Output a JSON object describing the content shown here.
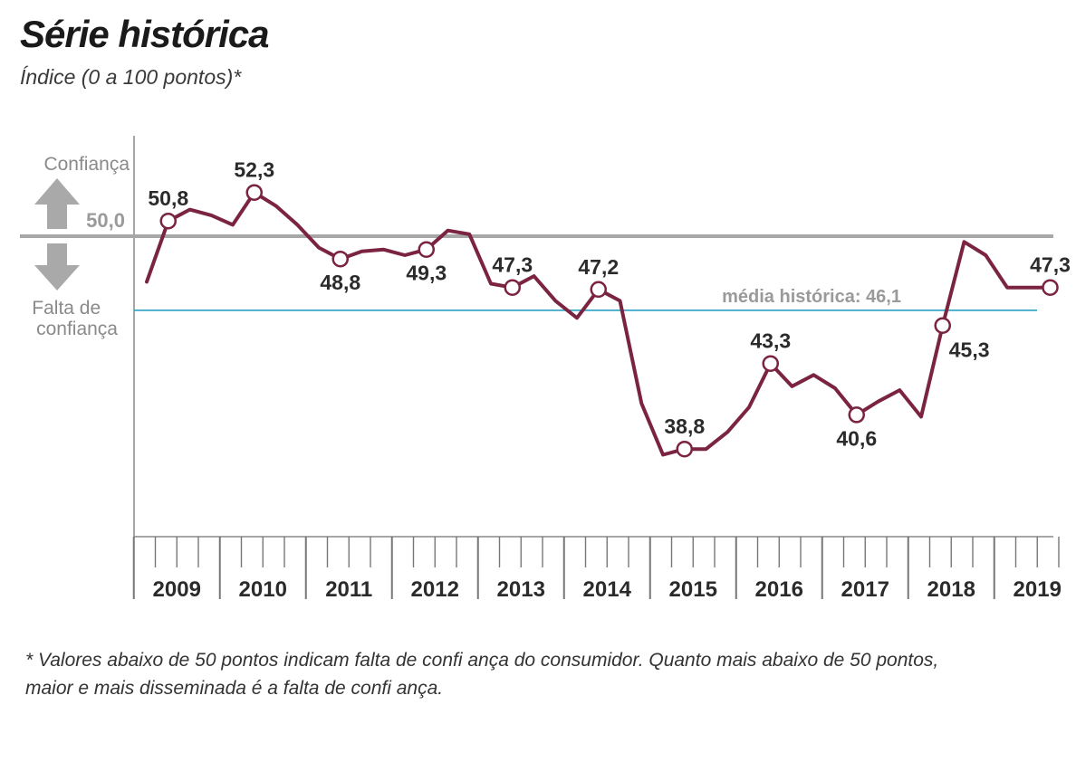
{
  "chart_data": {
    "type": "line",
    "title": "Série histórica",
    "subtitle": "Índice (0 a 100 pontos)*",
    "years": [
      "2009",
      "2010",
      "2011",
      "2012",
      "2013",
      "2014",
      "2015",
      "2016",
      "2017",
      "2018",
      "2019"
    ],
    "x": [
      "2009-Q1",
      "2009-Q2",
      "2009-Q3",
      "2009-Q4",
      "2010-Q1",
      "2010-Q2",
      "2010-Q3",
      "2010-Q4",
      "2011-Q1",
      "2011-Q2",
      "2011-Q3",
      "2011-Q4",
      "2012-Q1",
      "2012-Q2",
      "2012-Q3",
      "2012-Q4",
      "2013-Q1",
      "2013-Q2",
      "2013-Q3",
      "2013-Q4",
      "2014-Q1",
      "2014-Q2",
      "2014-Q3",
      "2014-Q4",
      "2015-Q1",
      "2015-Q2",
      "2015-Q3",
      "2015-Q4",
      "2016-Q1",
      "2016-Q2",
      "2016-Q3",
      "2016-Q4",
      "2017-Q1",
      "2017-Q2",
      "2017-Q3",
      "2017-Q4",
      "2018-Q1",
      "2018-Q2",
      "2018-Q3",
      "2018-Q4",
      "2019-Q1",
      "2019-Q2",
      "2019-Q3"
    ],
    "series": [
      {
        "values": [
          47.6,
          50.8,
          51.4,
          51.1,
          50.6,
          52.3,
          51.6,
          50.6,
          49.4,
          48.8,
          49.2,
          49.3,
          49.0,
          49.3,
          50.3,
          50.1,
          47.5,
          47.3,
          47.9,
          46.6,
          45.7,
          47.2,
          46.6,
          41.2,
          38.5,
          38.8,
          38.8,
          39.7,
          41.0,
          43.3,
          42.1,
          42.7,
          42.0,
          40.6,
          41.3,
          41.9,
          40.5,
          45.3,
          49.7,
          49.0,
          47.3,
          47.3,
          47.3
        ],
        "color": "#7a2440"
      }
    ],
    "labeled_points": [
      {
        "index": 1,
        "label": "50,8",
        "pos": "above"
      },
      {
        "index": 5,
        "label": "52,3",
        "pos": "above"
      },
      {
        "index": 9,
        "label": "48,8",
        "pos": "below"
      },
      {
        "index": 13,
        "label": "49,3",
        "pos": "below"
      },
      {
        "index": 17,
        "label": "47,3",
        "pos": "above"
      },
      {
        "index": 21,
        "label": "47,2",
        "pos": "above"
      },
      {
        "index": 25,
        "label": "38,8",
        "pos": "above"
      },
      {
        "index": 29,
        "label": "43,3",
        "pos": "above"
      },
      {
        "index": 33,
        "label": "40,6",
        "pos": "below"
      },
      {
        "index": 37,
        "label": "45,3",
        "pos": "right"
      },
      {
        "index": 42,
        "label": "47,3",
        "pos": "above"
      }
    ],
    "reference_lines": [
      {
        "value": 50.0,
        "label": "50,0",
        "color": "#a7a7a7"
      },
      {
        "value": 46.1,
        "label": "média histórica: 46,1",
        "color": "#3aa6c6"
      }
    ],
    "ylim": [
      30,
      55
    ],
    "arrow_labels": {
      "up": "Confiança",
      "down": "Falta de confiança"
    },
    "line_color": "#7a2440",
    "axis_color": "#888888"
  },
  "note": "* Valores abaixo de 50 pontos indicam falta de confi ança do consumidor. Quanto mais abaixo de 50 pontos, maior e mais disseminada é a falta de confi ança."
}
